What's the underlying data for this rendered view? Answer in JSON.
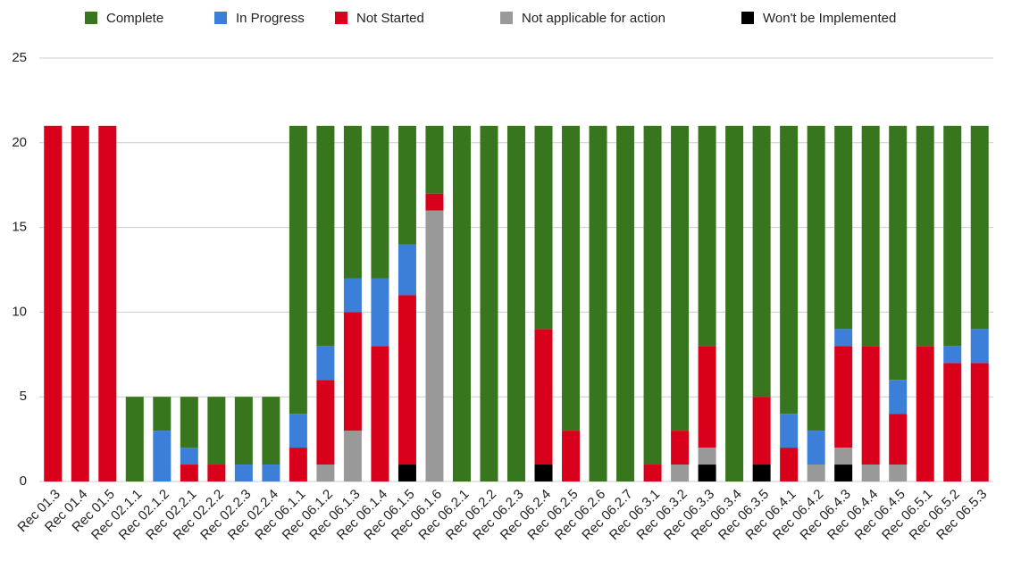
{
  "chart_data": {
    "type": "stacked_bar",
    "categories": [
      "Rec 01.3",
      "Rec 01.4",
      "Rec 01.5",
      "Rec 02.1.1",
      "Rec 02.1.2",
      "Rec 02.2.1",
      "Rec 02.2.2",
      "Rec 02.2.3",
      "Rec 02.2.4",
      "Rec 06.1.1",
      "Rec 06.1.2",
      "Rec 06.1.3",
      "Rec 06.1.4",
      "Rec 06.1.5",
      "Rec 06.1.6",
      "Rec 06.2.1",
      "Rec 06.2.2",
      "Rec 06.2.3",
      "Rec 06.2.4",
      "Rec 06.2.5",
      "Rec 06.2.6",
      "Rec 06.2.7",
      "Rec 06.3.1",
      "Rec 06.3.2",
      "Rec 06.3.3",
      "Rec 06.3.4",
      "Rec 06.3.5",
      "Rec 06.4.1",
      "Rec 06.4.2",
      "Rec 06.4.3",
      "Rec 06.4.4",
      "Rec 06.4.5",
      "Rec 06.5.1",
      "Rec 06.5.2",
      "Rec 06.5.3"
    ],
    "series": [
      {
        "name": "Complete",
        "color": "#38761d",
        "values": [
          0,
          0,
          0,
          5,
          2,
          3,
          4,
          4,
          4,
          17,
          13,
          9,
          9,
          7,
          4,
          21,
          21,
          21,
          12,
          18,
          21,
          21,
          20,
          18,
          13,
          21,
          16,
          17,
          18,
          12,
          13,
          15,
          13,
          13,
          12
        ]
      },
      {
        "name": "In Progress",
        "color": "#3c7fd9",
        "values": [
          0,
          0,
          0,
          0,
          3,
          1,
          0,
          1,
          1,
          2,
          2,
          2,
          4,
          3,
          0,
          0,
          0,
          0,
          0,
          0,
          0,
          0,
          0,
          0,
          0,
          0,
          0,
          2,
          2,
          1,
          0,
          2,
          0,
          1,
          2
        ]
      },
      {
        "name": "Not Started",
        "color": "#d9001b",
        "values": [
          21,
          21,
          21,
          0,
          0,
          1,
          1,
          0,
          0,
          2,
          5,
          7,
          8,
          10,
          1,
          0,
          0,
          0,
          8,
          3,
          0,
          0,
          1,
          2,
          6,
          0,
          4,
          2,
          0,
          6,
          7,
          3,
          8,
          7,
          7
        ]
      },
      {
        "name": "Not applicable for action",
        "color": "#999999",
        "values": [
          0,
          0,
          0,
          0,
          0,
          0,
          0,
          0,
          0,
          0,
          1,
          3,
          0,
          0,
          16,
          0,
          0,
          0,
          0,
          0,
          0,
          0,
          0,
          1,
          1,
          0,
          0,
          0,
          1,
          1,
          1,
          1,
          0,
          0,
          0
        ]
      },
      {
        "name": "Won't be Implemented",
        "color": "#000000",
        "values": [
          0,
          0,
          0,
          0,
          0,
          0,
          0,
          0,
          0,
          0,
          0,
          0,
          0,
          1,
          0,
          0,
          0,
          0,
          1,
          0,
          0,
          0,
          0,
          0,
          1,
          0,
          1,
          0,
          0,
          1,
          0,
          0,
          0,
          0,
          0
        ]
      }
    ],
    "ylim": [
      0,
      25
    ],
    "yticks": [
      0,
      5,
      10,
      15,
      20,
      25
    ],
    "grid": true,
    "legend": "top"
  }
}
